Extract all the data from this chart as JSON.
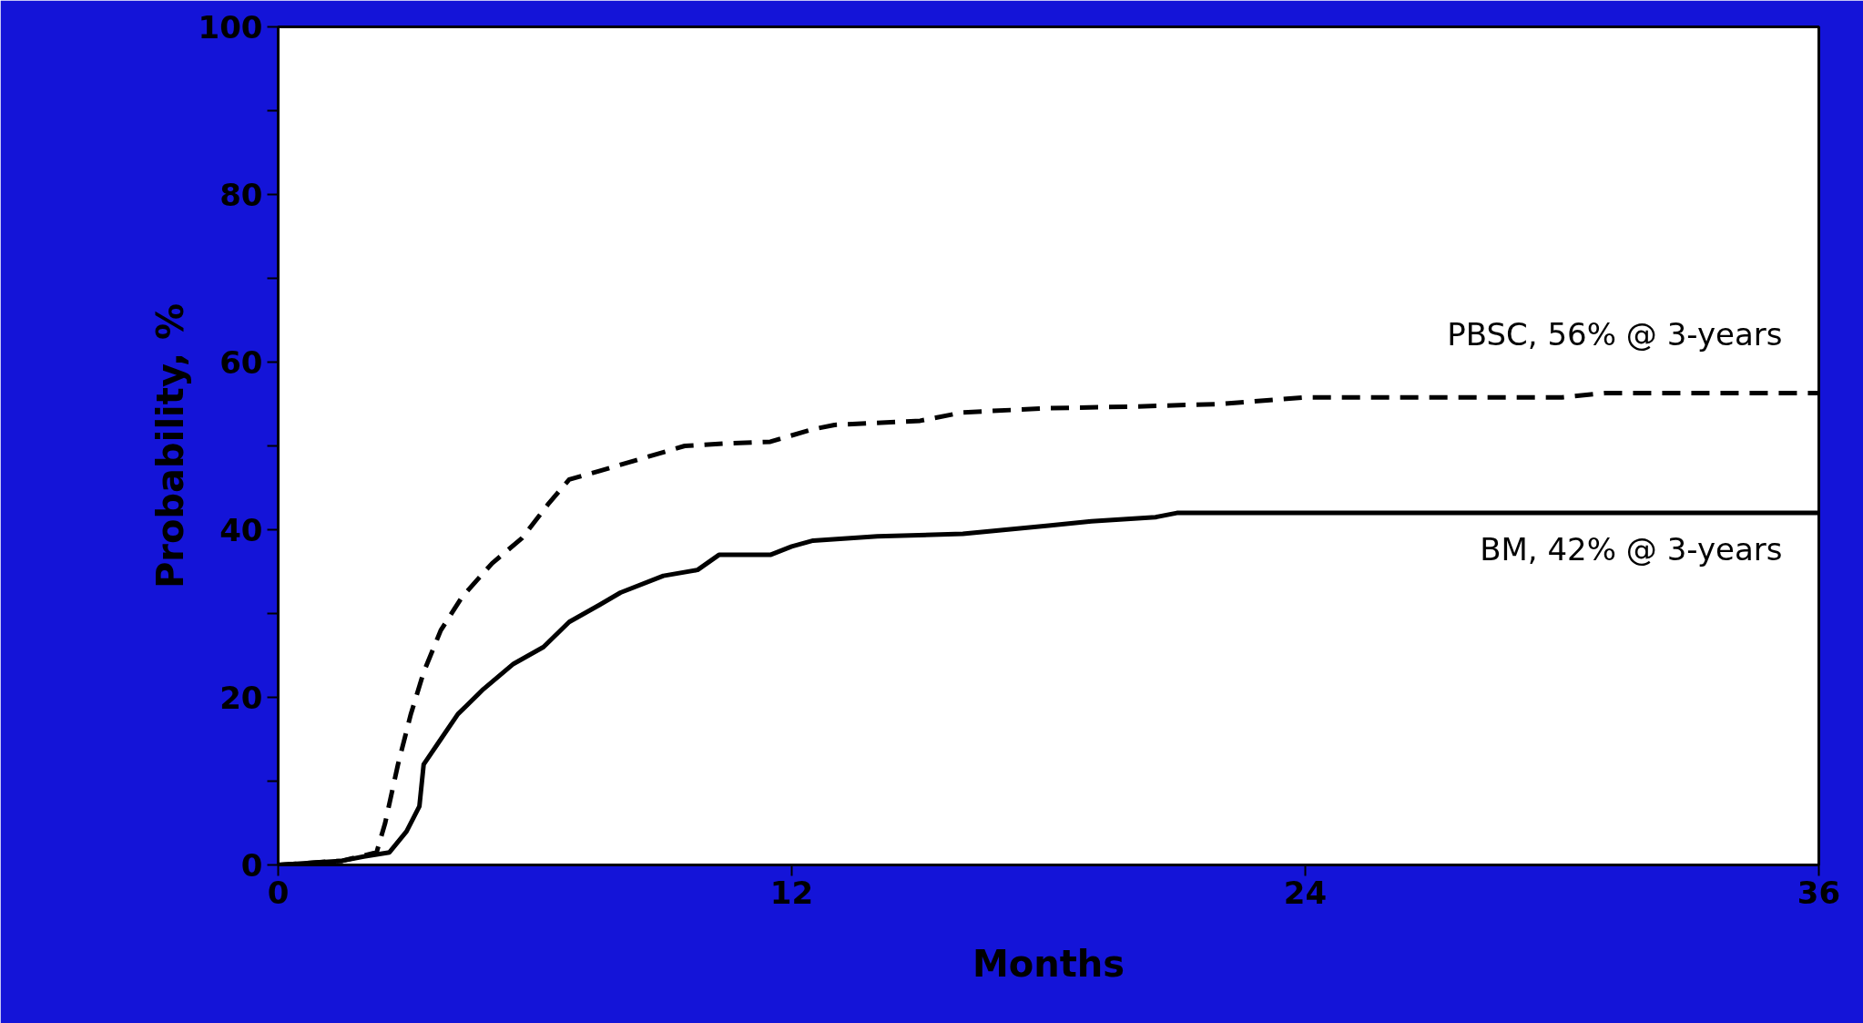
{
  "chart_data": {
    "type": "line",
    "xlabel": "Months",
    "ylabel": "Probability, %",
    "xlim": [
      0,
      36
    ],
    "ylim": [
      0,
      100
    ],
    "xticks": [
      0,
      12,
      24,
      36
    ],
    "yticks": [
      0,
      {
        "value": 10,
        "label": null
      },
      20,
      {
        "value": 30,
        "label": null
      },
      40,
      {
        "value": 50,
        "label": null
      },
      60,
      {
        "value": 70,
        "label": null
      },
      80,
      {
        "value": 90,
        "label": null
      },
      100
    ],
    "grid": false,
    "marker": "none",
    "series": [
      {
        "color": "#000000",
        "line_style": "dashed",
        "x": [
          0,
          1.5,
          2.3,
          2.5,
          2.8,
          3.1,
          3.4,
          3.8,
          4.3,
          5,
          5.7,
          6.3,
          6.8,
          7.5,
          8.5,
          9.5,
          10.5,
          11.5,
          12.5,
          13,
          15,
          16,
          18,
          20,
          22,
          24,
          30,
          31,
          36
        ],
        "values": [
          0,
          0.5,
          1.5,
          5,
          12,
          18,
          23,
          28,
          32,
          36,
          39,
          43,
          46,
          47,
          48.5,
          50,
          50.3,
          50.5,
          52,
          52.5,
          53,
          54,
          54.5,
          54.7,
          55,
          55.8,
          55.8,
          56.3,
          56.3
        ]
      },
      {
        "color": "#000000",
        "line_style": "solid",
        "x": [
          0,
          1.5,
          2,
          2.6,
          3,
          3.3,
          3.4,
          3.8,
          4.2,
          4.8,
          5.5,
          6.2,
          6.8,
          7.5,
          8,
          9,
          9.8,
          10.3,
          11.5,
          12,
          12.5,
          14,
          16,
          17,
          18,
          19,
          20.5,
          21,
          33,
          36
        ],
        "values": [
          0,
          0.5,
          1,
          1.5,
          4,
          7,
          12,
          15,
          18,
          21,
          24,
          26,
          29,
          31,
          32.5,
          34.5,
          35.2,
          37,
          37,
          38,
          38.7,
          39.2,
          39.5,
          40,
          40.5,
          41,
          41.5,
          42,
          42,
          42
        ]
      }
    ],
    "annotations": [
      "PBSC, 56% @ 3-years",
      "BM, 42% @ 3-years"
    ]
  }
}
